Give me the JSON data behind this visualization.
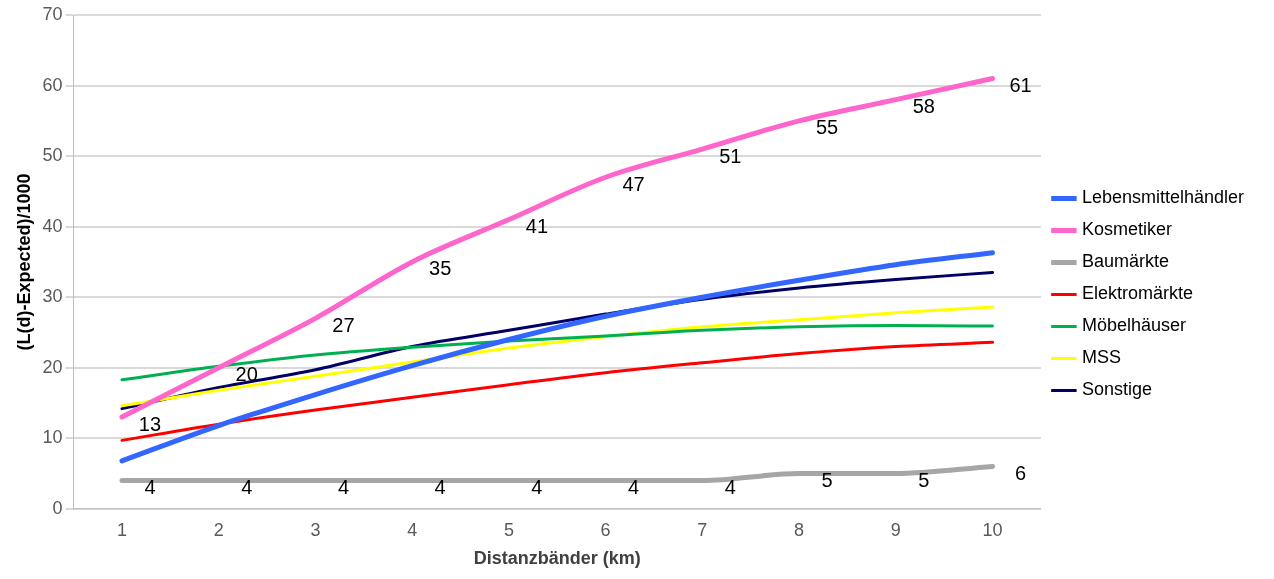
{
  "chart_data": {
    "type": "line",
    "xlabel": "Distanzbänder (km)",
    "ylabel": "(L(d)-Expected)/1000",
    "categories": [
      "1",
      "2",
      "3",
      "4",
      "5",
      "6",
      "7",
      "8",
      "9",
      "10"
    ],
    "ylim": [
      0,
      70
    ],
    "yticks": [
      0,
      10,
      20,
      30,
      40,
      50,
      60,
      70
    ],
    "grid": "y",
    "legend": "right",
    "marker": "none",
    "line_style": "solid",
    "series": [
      {
        "name": "Lebensmittelhändler",
        "color": "#3366ff",
        "values": [
          6.8,
          11.8,
          16.2,
          20.3,
          24,
          27.3,
          30,
          32.4,
          34.6,
          36.3
        ]
      },
      {
        "name": "Kosmetiker",
        "color": "#ff66cc",
        "values": [
          13,
          20,
          27,
          35,
          41,
          47,
          51,
          55,
          58,
          61
        ],
        "value_labels": [
          "13",
          "20",
          "27",
          "35",
          "41",
          "47",
          "51",
          "55",
          "58",
          "61"
        ]
      },
      {
        "name": "Baumärkte",
        "color": "#a6a6a6",
        "values": [
          4,
          4,
          4,
          4,
          4,
          4,
          4,
          5,
          5,
          6
        ],
        "value_labels": [
          "4",
          "4",
          "4",
          "4",
          "4",
          "4",
          "4",
          "5",
          "5",
          "6"
        ]
      },
      {
        "name": "Elektromärkte",
        "color": "#ff0000",
        "values": [
          9.7,
          12,
          14,
          15.8,
          17.6,
          19.3,
          20.7,
          22,
          23,
          23.6
        ]
      },
      {
        "name": "Möbelhäuser",
        "color": "#00b050",
        "values": [
          18.3,
          20.2,
          21.8,
          22.9,
          23.8,
          24.5,
          25.3,
          25.8,
          26,
          25.9
        ]
      },
      {
        "name": "MSS",
        "color": "#ffff00",
        "values": [
          14.6,
          16.8,
          18.8,
          20.8,
          22.8,
          24.4,
          25.8,
          26.8,
          27.8,
          28.6
        ]
      },
      {
        "name": "Sonstige",
        "color": "#000066",
        "values": [
          14.2,
          17.2,
          19.7,
          23,
          25.3,
          27.6,
          29.7,
          31.3,
          32.5,
          33.5
        ]
      }
    ]
  }
}
